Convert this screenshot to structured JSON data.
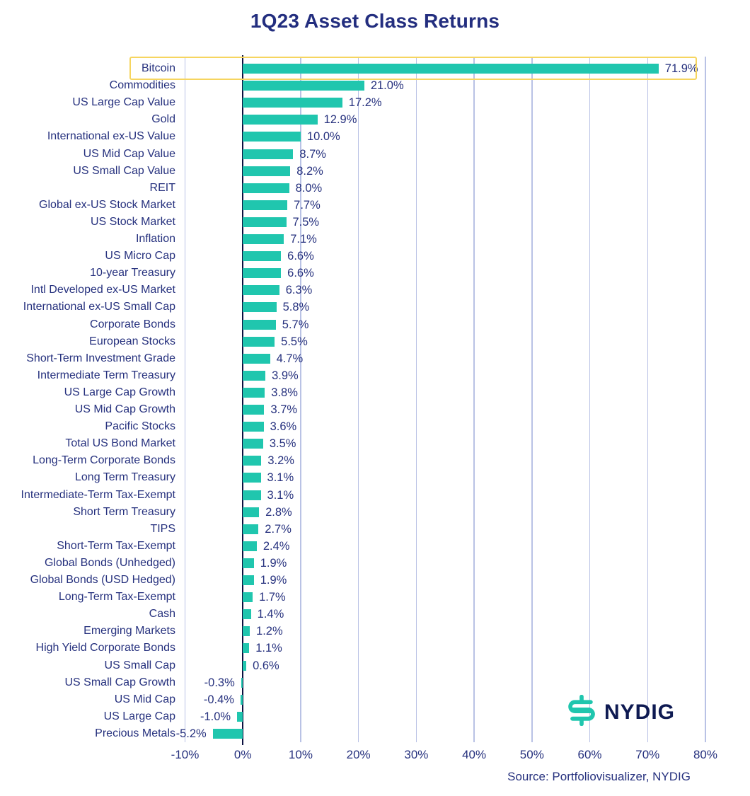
{
  "chart_data": {
    "type": "bar",
    "orientation": "horizontal",
    "title": "1Q23 Asset Class Returns",
    "categories": [
      "Bitcoin",
      "Commodities",
      "US Large Cap Value",
      "Gold",
      "International ex-US Value",
      "US Mid Cap Value",
      "US Small Cap Value",
      "REIT",
      "Global ex-US Stock Market",
      "US Stock Market",
      "Inflation",
      "US Micro Cap",
      "10-year Treasury",
      "Intl Developed ex-US Market",
      "International ex-US Small Cap",
      "Corporate Bonds",
      "European Stocks",
      "Short-Term Investment Grade",
      "Intermediate Term Treasury",
      "US Large Cap Growth",
      "US Mid Cap Growth",
      "Pacific Stocks",
      "Total US Bond Market",
      "Long-Term Corporate Bonds",
      "Long Term Treasury",
      "Intermediate-Term Tax-Exempt",
      "Short Term Treasury",
      "TIPS",
      "Short-Term Tax-Exempt",
      "Global Bonds (Unhedged)",
      "Global Bonds (USD Hedged)",
      "Long-Term Tax-Exempt",
      "Cash",
      "Emerging Markets",
      "High Yield Corporate Bonds",
      "US Small Cap",
      "US Small Cap Growth",
      "US Mid Cap",
      "US Large Cap",
      "Precious Metals"
    ],
    "values": [
      71.9,
      21.0,
      17.2,
      12.9,
      10.0,
      8.7,
      8.2,
      8.0,
      7.7,
      7.5,
      7.1,
      6.6,
      6.6,
      6.3,
      5.8,
      5.7,
      5.5,
      4.7,
      3.9,
      3.8,
      3.7,
      3.6,
      3.5,
      3.2,
      3.1,
      3.1,
      2.8,
      2.7,
      2.4,
      1.9,
      1.9,
      1.7,
      1.4,
      1.2,
      1.1,
      0.6,
      -0.3,
      -0.4,
      -1.0,
      -5.2
    ],
    "value_labels": [
      "71.9%",
      "21.0%",
      "17.2%",
      "12.9%",
      "10.0%",
      "8.7%",
      "8.2%",
      "8.0%",
      "7.7%",
      "7.5%",
      "7.1%",
      "6.6%",
      "6.6%",
      "6.3%",
      "5.8%",
      "5.7%",
      "5.5%",
      "4.7%",
      "3.9%",
      "3.8%",
      "3.7%",
      "3.6%",
      "3.5%",
      "3.2%",
      "3.1%",
      "3.1%",
      "2.8%",
      "2.7%",
      "2.4%",
      "1.9%",
      "1.9%",
      "1.7%",
      "1.4%",
      "1.2%",
      "1.1%",
      "0.6%",
      "-0.3%",
      "-0.4%",
      "-1.0%",
      "-5.2%"
    ],
    "x_ticks": [
      "-10%",
      "0%",
      "10%",
      "20%",
      "30%",
      "40%",
      "50%",
      "60%",
      "70%",
      "80%"
    ],
    "x_tick_values": [
      -10,
      0,
      10,
      20,
      30,
      40,
      50,
      60,
      70,
      80
    ],
    "xlim": [
      -10,
      80
    ],
    "grid": true,
    "legend": "none",
    "xlabel": "",
    "ylabel": "",
    "bar_color": "#20c6ae",
    "gridline_color": "#b9c2e5",
    "zero_axis_color": "#0b1140",
    "text_color": "#26317e",
    "highlight": {
      "category": "Bitcoin",
      "border_color": "#f6d55f"
    },
    "source": "Source: Portfoliovisualizer, NYDIG",
    "logo": {
      "text": "NYDIG",
      "icon": "nydig-dollar-mark-icon",
      "icon_color": "#20c6ae",
      "text_color": "#0e1a52"
    }
  }
}
